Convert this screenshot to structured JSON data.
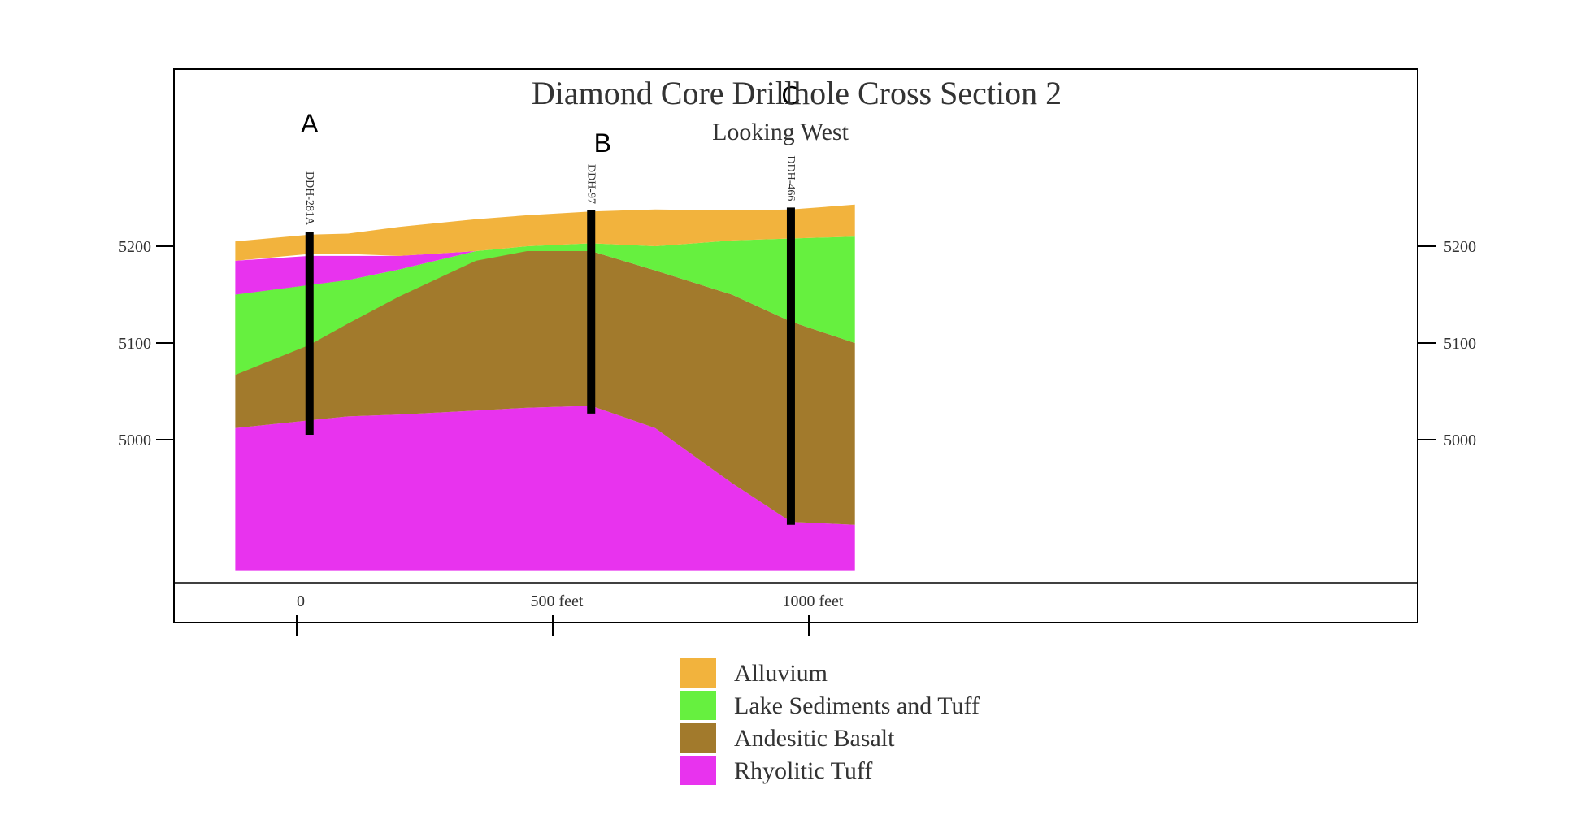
{
  "title": "Diamond Core Drillhole Cross Section 2",
  "subtitle": "Looking West",
  "colors": {
    "alluvium": "#F2B33D",
    "lake_sediments": "#66F03F",
    "andesitic_basalt": "#A27A2C",
    "rhyolitic_tuff": "#E833EE",
    "drillhole": "#000000",
    "frame": "#000000"
  },
  "elevation_axis": {
    "ticks": [
      {
        "value": 5200,
        "left_label": "5200",
        "right_label": "5200"
      },
      {
        "value": 5100,
        "left_label": "5100",
        "right_label": "5100"
      },
      {
        "value": 5000,
        "left_label": "5000",
        "right_label": "5000"
      }
    ]
  },
  "distance_axis": {
    "ticks": [
      {
        "value": 0,
        "label": "0"
      },
      {
        "value": 500,
        "label": "500 feet"
      },
      {
        "value": 1000,
        "label": "1000 feet"
      }
    ]
  },
  "drillholes": [
    {
      "marker": "A",
      "name": "DDH-281A",
      "distance_ft": 25,
      "collar_elev": 5215,
      "bottom_elev": 5005
    },
    {
      "marker": "B",
      "name": "DDH-97",
      "distance_ft": 575,
      "collar_elev": 5237,
      "bottom_elev": 5027
    },
    {
      "marker": "C",
      "name": "DDH-466",
      "distance_ft": 965,
      "collar_elev": 5240,
      "bottom_elev": 4912
    }
  ],
  "legend": [
    {
      "label": "Alluvium",
      "color_key": "alluvium"
    },
    {
      "label": "Lake Sediments and Tuff",
      "color_key": "lake_sediments"
    },
    {
      "label": "Andesitic Basalt",
      "color_key": "andesitic_basalt"
    },
    {
      "label": "Rhyolitic Tuff",
      "color_key": "rhyolitic_tuff"
    }
  ],
  "sections": {
    "distance_ft": [
      -120,
      25,
      100,
      200,
      350,
      450,
      575,
      700,
      850,
      965,
      1090
    ],
    "surfaces": [
      {
        "name": "alluvium_top",
        "elev": [
          5205,
          5212,
          5213,
          5220,
          5228,
          5232,
          5236,
          5238,
          5237,
          5238,
          5243
        ]
      },
      {
        "name": "alluvium_base",
        "elev": [
          5185,
          5192,
          5192,
          5190,
          5195,
          5200,
          5203,
          5200,
          5206,
          5208,
          5210
        ]
      },
      {
        "name": "rhyolite_upper_base",
        "elev": [
          5185,
          5188,
          5188,
          5186,
          5192,
          5200,
          5203,
          5200,
          5206,
          5208,
          5210
        ]
      },
      {
        "name": "lake_base",
        "elev": [
          5150,
          5160,
          5165,
          5175,
          5192,
          5197,
          5195,
          5175,
          5150,
          5122,
          5100
        ]
      },
      {
        "name": "basalt_base",
        "elev": [
          5012,
          5020,
          5024,
          5026,
          5030,
          5033,
          5035,
          5012,
          4955,
          4915,
          4912
        ]
      }
    ],
    "lower_bound_elev": 4865,
    "lake_west_pinch_elev": 5067,
    "upper_rhyolite_pinch_ft": 350
  }
}
